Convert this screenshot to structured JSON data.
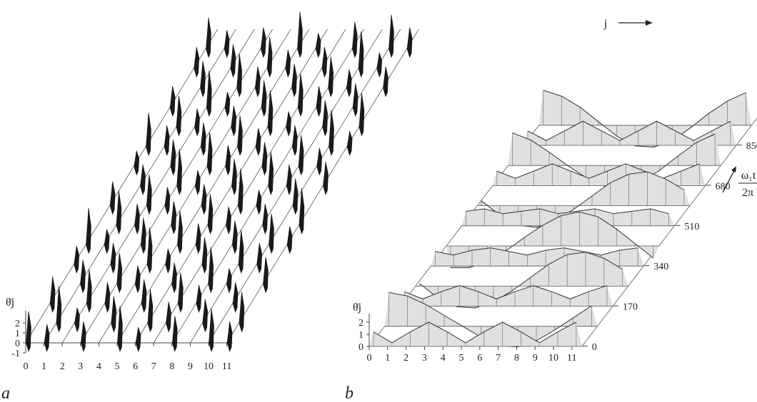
{
  "chart_data": [
    {
      "panel": "a",
      "type": "area",
      "ylabel": "θ̈j",
      "x_ticks": [
        "0",
        "1",
        "2",
        "3",
        "4",
        "5",
        "6",
        "7",
        "8",
        "9",
        "10",
        "11"
      ],
      "y_ticks": [
        "-1",
        "0",
        "1",
        "2"
      ],
      "ylim": [
        -1,
        2.5
      ],
      "rows": 16
    },
    {
      "panel": "b",
      "type": "area",
      "ylabel": "θ̈j",
      "x_ticks": [
        "0",
        "1",
        "2",
        "3",
        "4",
        "5",
        "6",
        "7",
        "8",
        "9",
        "10",
        "11"
      ],
      "y_ticks": [
        "0",
        "1",
        "2"
      ],
      "depth_ticks": [
        "0",
        "170",
        "340",
        "510",
        "680",
        "850"
      ],
      "depth_label": "ω₁t / 2π",
      "x_arrow_label": "j",
      "profiles": [
        {
          "type": "zigzag",
          "values": [
            1.2,
            0.3,
            1.2,
            2.0,
            1.2,
            0.3,
            1.2,
            2.0,
            1.2,
            0.3,
            1.2,
            2.0
          ]
        },
        {
          "type": "cosine",
          "values": [
            2.8,
            2.5,
            1.8,
            0.9,
            0.0,
            -0.9,
            -1.6,
            -1.7,
            -1.2,
            -0.3,
            0.7,
            1.7
          ]
        },
        {
          "type": "zigzag",
          "values": [
            1.2,
            0.6,
            1.2,
            1.7,
            1.2,
            0.6,
            1.2,
            1.7,
            1.2,
            0.6,
            1.2,
            1.7
          ]
        },
        {
          "type": "cosine",
          "values": [
            0.2,
            -1.0,
            -1.7,
            -1.8,
            -1.3,
            -0.4,
            0.7,
            1.8,
            2.6,
            2.8,
            2.3,
            1.4
          ]
        },
        {
          "type": "zigzag",
          "values": [
            1.2,
            0.9,
            1.3,
            1.5,
            1.2,
            0.9,
            1.3,
            1.5,
            1.2,
            0.9,
            1.3,
            1.5
          ]
        },
        {
          "type": "cosine",
          "values": [
            -1.8,
            -1.8,
            -1.3,
            -0.4,
            0.7,
            1.7,
            2.5,
            2.8,
            2.4,
            1.4,
            0.2,
            -1.0
          ]
        },
        {
          "type": "zigzag",
          "values": [
            1.2,
            1.4,
            1.0,
            1.2,
            1.4,
            1.0,
            1.2,
            1.4,
            1.0,
            1.2,
            1.4,
            1.0
          ]
        },
        {
          "type": "cosine",
          "values": [
            0.4,
            -0.8,
            -1.6,
            -1.8,
            -1.3,
            -0.3,
            0.8,
            1.9,
            2.6,
            2.8,
            2.2,
            1.3
          ]
        },
        {
          "type": "zigzag",
          "values": [
            1.2,
            0.6,
            1.2,
            1.8,
            1.2,
            0.6,
            1.2,
            1.8,
            1.2,
            0.6,
            1.2,
            1.8
          ]
        },
        {
          "type": "cosine",
          "values": [
            2.7,
            2.1,
            1.1,
            0.0,
            -1.0,
            -1.7,
            -1.8,
            -1.3,
            -0.4,
            0.8,
            1.9,
            2.6
          ]
        },
        {
          "type": "zigzag",
          "values": [
            1.2,
            0.4,
            1.2,
            2.0,
            1.2,
            0.4,
            1.2,
            2.0,
            1.2,
            0.4,
            1.2,
            2.0
          ]
        },
        {
          "type": "cosine",
          "values": [
            2.9,
            2.4,
            1.5,
            0.3,
            -0.9,
            -1.7,
            -1.8,
            -1.3,
            -0.2,
            1.0,
            2.0,
            2.7
          ]
        }
      ]
    }
  ],
  "labels": {
    "panel_a": "a",
    "panel_b": "b"
  }
}
